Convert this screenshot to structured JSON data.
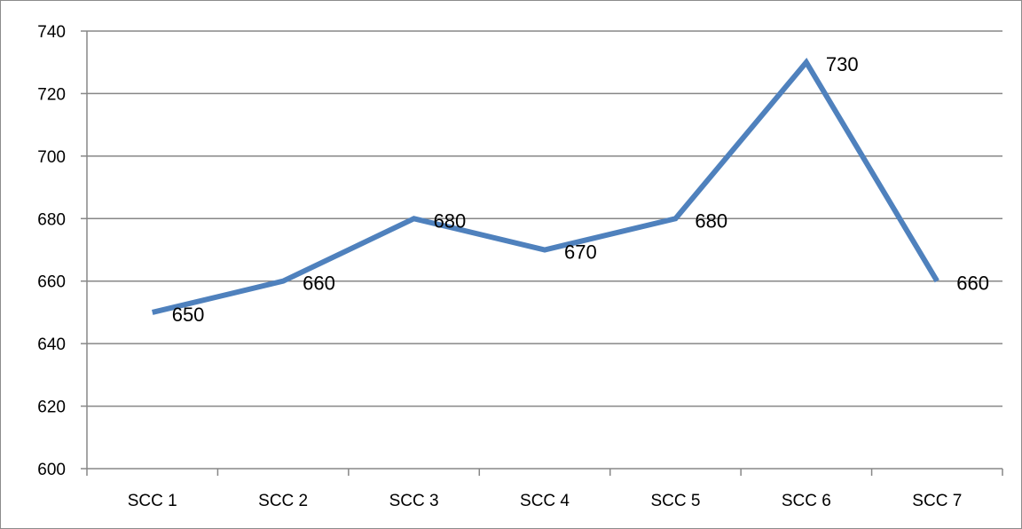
{
  "chart_data": {
    "type": "line",
    "title": "",
    "xlabel": "",
    "ylabel": "",
    "categories": [
      "SCC 1",
      "SCC 2",
      "SCC 3",
      "SCC 4",
      "SCC 5",
      "SCC 6",
      "SCC 7"
    ],
    "series": [
      {
        "values": [
          650,
          660,
          680,
          670,
          680,
          730,
          660
        ],
        "color": "#4f81bd"
      }
    ],
    "ylim": [
      600,
      740
    ],
    "yticks": [
      "600",
      "620",
      "640",
      "660",
      "680",
      "700",
      "720",
      "740"
    ],
    "data_labels": [
      "650",
      "660",
      "680",
      "670",
      "680",
      "730",
      "660"
    ],
    "grid": true,
    "legend": "none"
  }
}
